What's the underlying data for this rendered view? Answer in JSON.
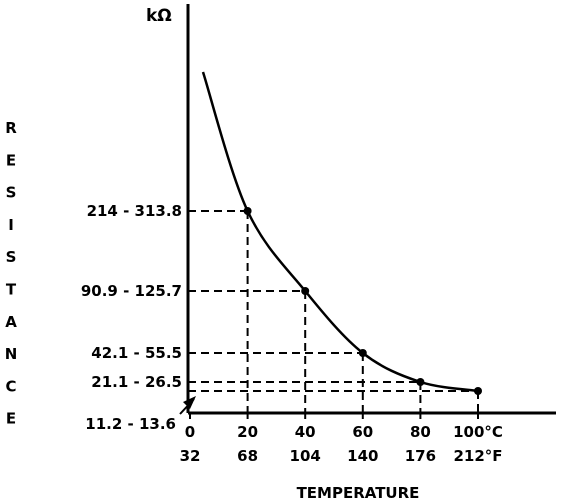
{
  "chart_data": {
    "type": "line",
    "title": "",
    "ylabel": "RESISTANCE",
    "xlabel": "TEMPERATURE",
    "y_unit": "kΩ",
    "x_ticks_celsius": [
      "0",
      "20",
      "40",
      "60",
      "80",
      "100°C"
    ],
    "x_ticks_fahrenheit": [
      "32",
      "68",
      "104",
      "140",
      "176",
      "212°F"
    ],
    "x_values": [
      0,
      20,
      40,
      60,
      80,
      100
    ],
    "xlim": [
      0,
      100
    ],
    "y_scale": "nonlinear",
    "points": [
      {
        "x": 20,
        "y_label": "214 - 313.8",
        "y_min": 214,
        "y_max": 313.8
      },
      {
        "x": 40,
        "y_label": "90.9 - 125.7",
        "y_min": 90.9,
        "y_max": 125.7
      },
      {
        "x": 60,
        "y_label": "42.1 - 55.5",
        "y_min": 42.1,
        "y_max": 55.5
      },
      {
        "x": 80,
        "y_label": "21.1 - 26.5",
        "y_min": 21.1,
        "y_max": 26.5
      },
      {
        "x": 100,
        "y_label": "11.2 - 13.6",
        "y_min": 11.2,
        "y_max": 13.6
      }
    ],
    "grid": false,
    "reference_lines": "dashed",
    "legend": "none"
  }
}
